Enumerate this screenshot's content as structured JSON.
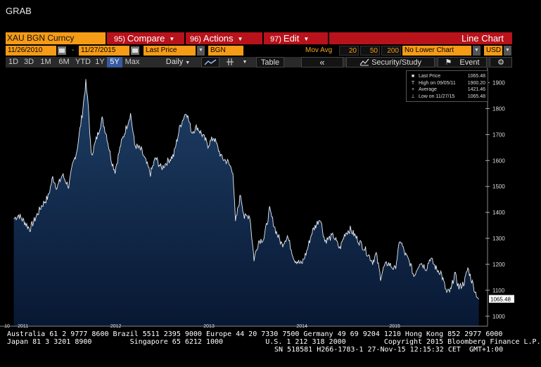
{
  "app": {
    "title": "GRAB"
  },
  "toolbar": {
    "security": "XAU BGN Curncy",
    "compare": {
      "num": "95)",
      "label": "Compare"
    },
    "actions": {
      "num": "96)",
      "label": "Actions"
    },
    "edit": {
      "num": "97)",
      "label": "Edit"
    },
    "chart_type": "Line Chart"
  },
  "params": {
    "start_date": "11/26/2010",
    "end_date": "11/27/2015",
    "field": "Last Price",
    "source": "BGN",
    "mov_avg_label": "Mov Avg",
    "ma": [
      "20",
      "50",
      "200"
    ],
    "lower_chart": "No Lower Chart",
    "currency": "USD"
  },
  "periods": [
    {
      "label": "1D",
      "active": false
    },
    {
      "label": "3D",
      "active": false
    },
    {
      "label": "1M",
      "active": false
    },
    {
      "label": "6M",
      "active": false
    },
    {
      "label": "YTD",
      "active": false
    },
    {
      "label": "1Y",
      "active": false
    },
    {
      "label": "5Y",
      "active": true
    },
    {
      "label": "Max",
      "active": false
    }
  ],
  "tools": {
    "frequency": "Daily",
    "table": "Table",
    "nav": "«",
    "security_study": "Security/Study",
    "event": "Event",
    "gear_icon": "gear-icon",
    "line_icon": "line-chart-icon",
    "crosshair_icon": "crosshair-icon",
    "flag_icon": "flag-icon"
  },
  "legend": {
    "rows": [
      {
        "key": "■",
        "text": "Last Price",
        "value": "1065.48"
      },
      {
        "key": "T",
        "text": "High on 09/05/11",
        "value": "1900.20"
      },
      {
        "key": "+",
        "text": "Average",
        "value": "1421.46"
      },
      {
        "key": "⊥",
        "text": "Low on 11/27/15",
        "value": "1065.48"
      }
    ]
  },
  "colors": {
    "accent_orange": "#f59b16",
    "toolbar_red": "#b8121b",
    "active_blue": "#375aa0",
    "area_top": "#1e3f66",
    "area_bottom": "#081833"
  },
  "chart_data": {
    "type": "area",
    "series": [
      {
        "name": "XAU BGN Curncy",
        "x": [
          "2010-11-26",
          "2010-12-15",
          "2011-01-10",
          "2011-01-28",
          "2011-02-20",
          "2011-03-15",
          "2011-04-10",
          "2011-04-28",
          "2011-05-15",
          "2011-06-05",
          "2011-06-30",
          "2011-07-15",
          "2011-08-01",
          "2011-08-22",
          "2011-09-05",
          "2011-09-15",
          "2011-09-26",
          "2011-10-10",
          "2011-11-08",
          "2011-11-25",
          "2011-12-15",
          "2011-12-29",
          "2012-01-20",
          "2012-02-28",
          "2012-03-15",
          "2012-04-10",
          "2012-05-16",
          "2012-06-05",
          "2012-06-28",
          "2012-07-20",
          "2012-08-15",
          "2012-09-10",
          "2012-10-04",
          "2012-10-25",
          "2012-11-15",
          "2012-12-05",
          "2012-12-28",
          "2013-01-20",
          "2013-02-20",
          "2013-03-15",
          "2013-04-05",
          "2013-04-15",
          "2013-05-05",
          "2013-05-20",
          "2013-06-10",
          "2013-06-27",
          "2013-07-15",
          "2013-08-05",
          "2013-08-27",
          "2013-09-20",
          "2013-10-15",
          "2013-11-05",
          "2013-12-02",
          "2013-12-31",
          "2014-01-20",
          "2014-02-10",
          "2014-03-14",
          "2014-04-01",
          "2014-05-05",
          "2014-05-30",
          "2014-06-20",
          "2014-07-10",
          "2014-08-05",
          "2014-09-05",
          "2014-10-06",
          "2014-10-20",
          "2014-11-06",
          "2014-11-20",
          "2014-12-05",
          "2015-01-02",
          "2015-01-22",
          "2015-02-10",
          "2015-03-02",
          "2015-03-17",
          "2015-04-10",
          "2015-05-05",
          "2015-05-20",
          "2015-06-15",
          "2015-07-01",
          "2015-07-24",
          "2015-08-10",
          "2015-08-24",
          "2015-09-10",
          "2015-10-01",
          "2015-10-15",
          "2015-11-05",
          "2015-11-15",
          "2015-11-27"
        ],
        "values": [
          1375,
          1390,
          1360,
          1335,
          1380,
          1425,
          1460,
          1535,
          1495,
          1545,
          1500,
          1580,
          1640,
          1780,
          1900,
          1805,
          1620,
          1660,
          1760,
          1700,
          1600,
          1560,
          1660,
          1780,
          1660,
          1640,
          1550,
          1610,
          1570,
          1595,
          1620,
          1735,
          1790,
          1710,
          1730,
          1700,
          1660,
          1690,
          1610,
          1595,
          1560,
          1360,
          1470,
          1380,
          1390,
          1220,
          1290,
          1300,
          1410,
          1330,
          1275,
          1310,
          1220,
          1200,
          1250,
          1325,
          1380,
          1290,
          1310,
          1260,
          1320,
          1335,
          1300,
          1260,
          1210,
          1240,
          1150,
          1190,
          1205,
          1180,
          1295,
          1240,
          1205,
          1155,
          1210,
          1185,
          1225,
          1180,
          1170,
          1090,
          1100,
          1165,
          1110,
          1130,
          1185,
          1120,
          1090,
          1065.48
        ]
      }
    ],
    "x_tick_labels": [
      "10",
      "2011",
      "2012",
      "2013",
      "2014",
      "2015"
    ],
    "y_ticks": [
      1000,
      1100,
      1200,
      1300,
      1400,
      1500,
      1600,
      1700,
      1800,
      1900
    ],
    "ylim": [
      975,
      1945
    ],
    "last_label": "1065.48",
    "grid": false,
    "legend_position": "top-right"
  },
  "footer": {
    "line1": "Australia 61 2 9777 8600 Brazil 5511 2395 9000 Europe 44 20 7330 7500 Germany 49 69 9204 1210 Hong Kong 852 2977 6000",
    "line2": "Japan 81 3 3201 8900         Singapore 65 6212 1000          U.S. 1 212 318 2000         Copyright 2015 Bloomberg Finance L.P.",
    "line3": "SN 518581 H266-1783-1 27-Nov-15 12:15:32 CET  GMT+1:00"
  }
}
